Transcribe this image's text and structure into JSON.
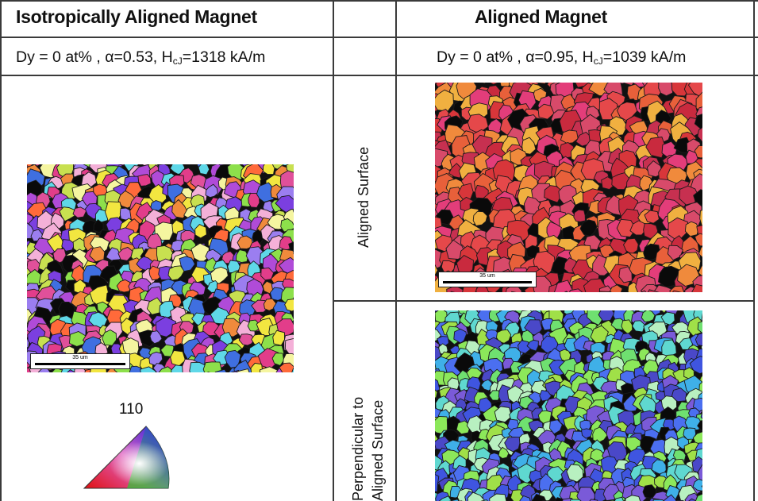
{
  "left": {
    "title": "Isotropically Aligned Magnet",
    "params": {
      "dy": "Dy = 0 at% ,",
      "alpha": "α=0.53,",
      "hcj_prefix": "H",
      "hcj_sub": "cJ",
      "hcj_value": "=1318 kA/m"
    },
    "scale_bar_label": "35 um",
    "legend_label": "110"
  },
  "right": {
    "title": "Aligned Magnet",
    "params": {
      "dy": "Dy = 0 at% ,",
      "alpha": "α=0.95,",
      "hcj_prefix": "H",
      "hcj_sub": "cJ",
      "hcj_value": "=1039 kA/m"
    },
    "row_labels": {
      "aligned": "Aligned Surface",
      "perp_line1": "Perpendicular to",
      "perp_line2": "Aligned Surface"
    },
    "scale_bar_label": "35 um"
  },
  "colors": {
    "isotropic_palette": [
      "#e23d8a",
      "#7b3fe0",
      "#f2e640",
      "#8de04b",
      "#f08a3c",
      "#3f6fe0",
      "#b04bd8",
      "#e0509a",
      "#5fd8e8",
      "#f4b0d8",
      "#ff6a3a",
      "#9b7ef0",
      "#c8e050",
      "#f5f5a0"
    ],
    "aligned_palette": [
      "#d8363a",
      "#e5484a",
      "#c92a3e",
      "#e8603a",
      "#f08a3c",
      "#d84a6a",
      "#f0b040",
      "#e33d7a",
      "#c73050"
    ],
    "perp_palette": [
      "#3f55e0",
      "#4b6ff0",
      "#6fe070",
      "#8ce85a",
      "#3fb0e8",
      "#5fd8d0",
      "#7a5ad8",
      "#a0e048",
      "#4a48c8",
      "#b8f0c0"
    ]
  }
}
